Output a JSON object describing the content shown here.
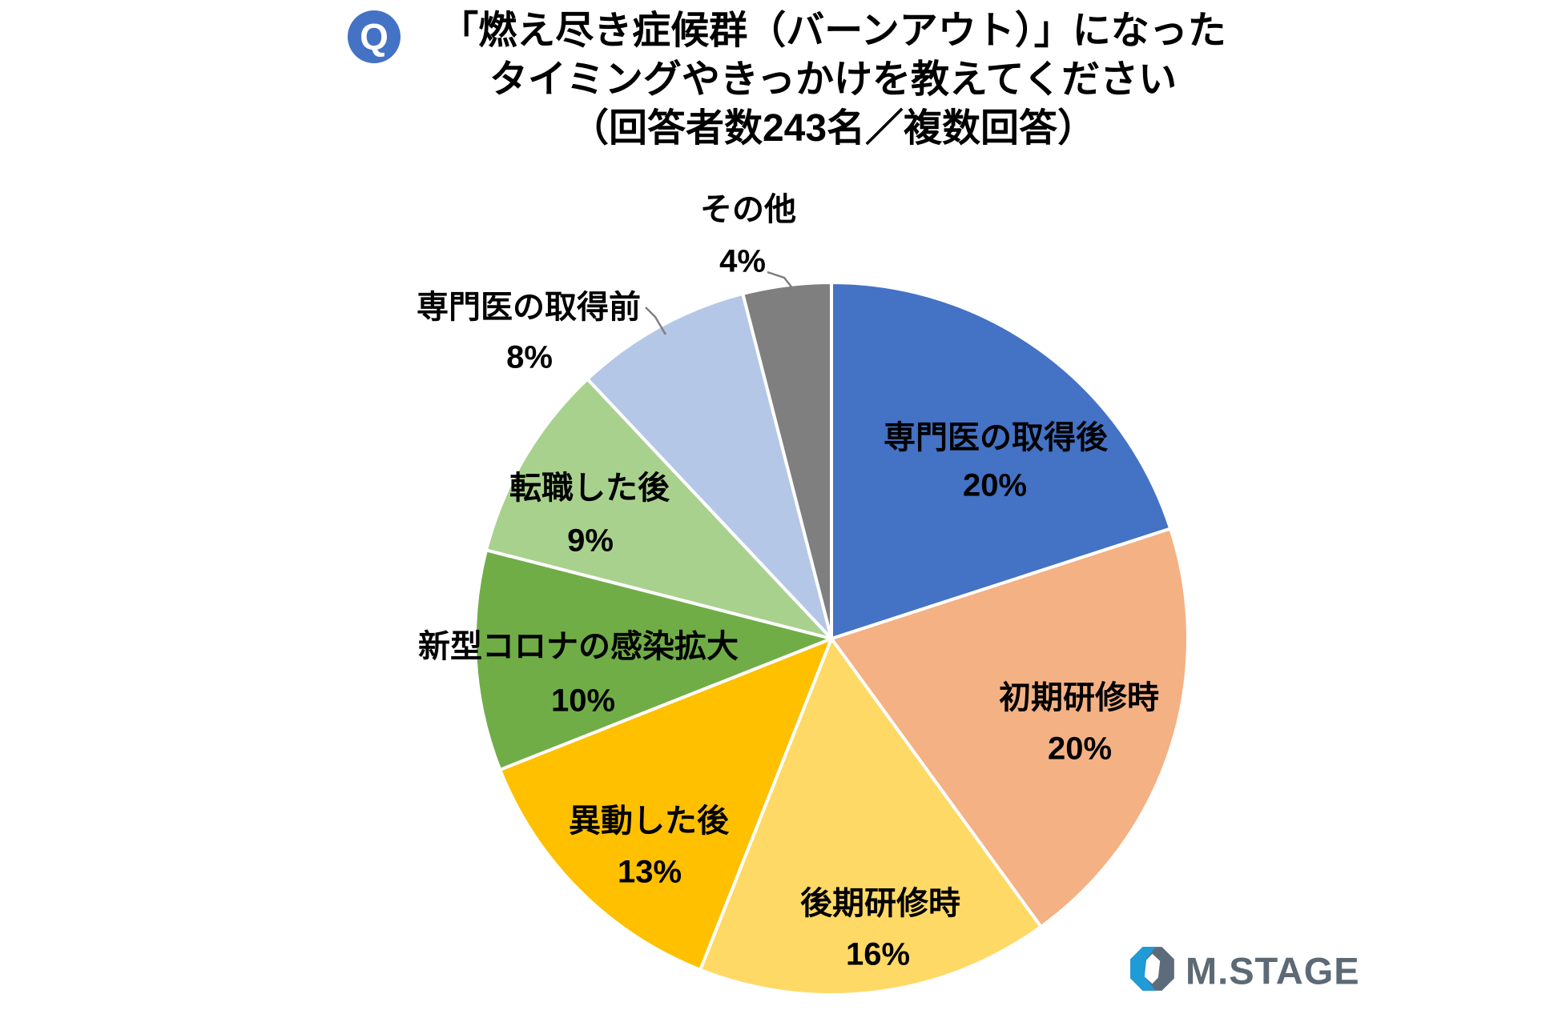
{
  "header": {
    "q_badge": "Q",
    "title_line1": "「燃え尽き症候群（バーンアウト）」になった",
    "title_line2": "タイミングやきっかけを教えてください",
    "title_line3": "（回答者数243名／複数回答）"
  },
  "chart_data": {
    "type": "pie",
    "title": "「燃え尽き症候群（バーンアウト）」になったタイミングやきっかけを教えてください（回答者数243名／複数回答）",
    "unit": "%",
    "direction": "clockwise",
    "start_angle_deg": 0,
    "legend_position": "none",
    "data_label_style": "category name and percentage, bold black",
    "slices": [
      {
        "label": "専門医の取得後",
        "value": 20,
        "pct_label": "20%",
        "color": "#4472C4"
      },
      {
        "label": "初期研修時",
        "value": 20,
        "pct_label": "20%",
        "color": "#F4B183"
      },
      {
        "label": "後期研修時",
        "value": 16,
        "pct_label": "16%",
        "color": "#FFD966"
      },
      {
        "label": "異動した後",
        "value": 13,
        "pct_label": "13%",
        "color": "#FFC000"
      },
      {
        "label": "新型コロナの感染拡大",
        "value": 10,
        "pct_label": "10%",
        "color": "#70AD47"
      },
      {
        "label": "転職した後",
        "value": 9,
        "pct_label": "9%",
        "color": "#A9D18E"
      },
      {
        "label": "専門医の取得前",
        "value": 8,
        "pct_label": "8%",
        "color": "#B4C7E7"
      },
      {
        "label": "その他",
        "value": 4,
        "pct_label": "4%",
        "color": "#7F7F7F"
      }
    ]
  },
  "colors": {
    "background": "#FFFFFF",
    "q_badge_bg": "#4472C4",
    "label_text": "#000000",
    "leader_line": "#7F7F7F",
    "logo_blue": "#1F9BD7",
    "logo_slate": "#5D6C7B",
    "logo_text_color": "#5C6A76"
  },
  "footer": {
    "logo_text": "M.STAGE"
  }
}
